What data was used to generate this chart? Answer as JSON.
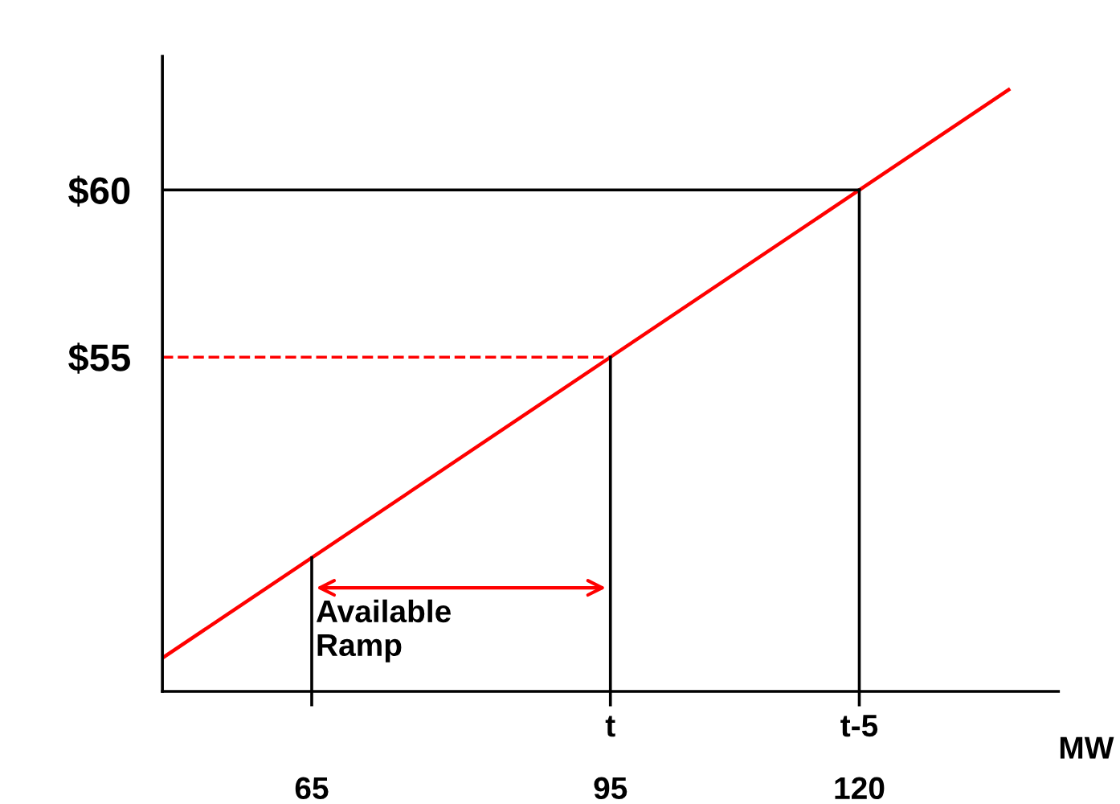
{
  "chart_data": {
    "type": "line",
    "xlabel": "MW",
    "x": [
      50,
      135
    ],
    "series": [
      {
        "color": "#ff0000",
        "values": [
          46,
          63
        ]
      }
    ],
    "xlim": [
      50,
      140
    ],
    "ylim": [
      45,
      64
    ],
    "xticks": [
      65,
      95,
      120
    ],
    "yticks": [
      {
        "value": 55,
        "label": "$55"
      },
      {
        "value": 60,
        "label": "$60"
      }
    ],
    "ref_lines": [
      {
        "axis": "y",
        "value": 60,
        "color": "#000000",
        "line_style": "solid"
      },
      {
        "axis": "y",
        "value": 55,
        "color": "#ff0000",
        "line_style": "dashed"
      },
      {
        "axis": "x",
        "value": 65,
        "color": "#000000",
        "line_style": "solid"
      },
      {
        "axis": "x",
        "value": 95,
        "color": "#000000",
        "line_style": "solid"
      },
      {
        "axis": "x",
        "value": 120,
        "color": "#000000",
        "line_style": "solid"
      }
    ],
    "annotations": [
      "Available\nRamp",
      {
        "text": "t",
        "x": 95,
        "y": 45
      },
      {
        "text": "t-5",
        "x": 120,
        "y": 45
      }
    ],
    "grid": false,
    "legend": false,
    "marker": "none",
    "line_style": "solid"
  }
}
